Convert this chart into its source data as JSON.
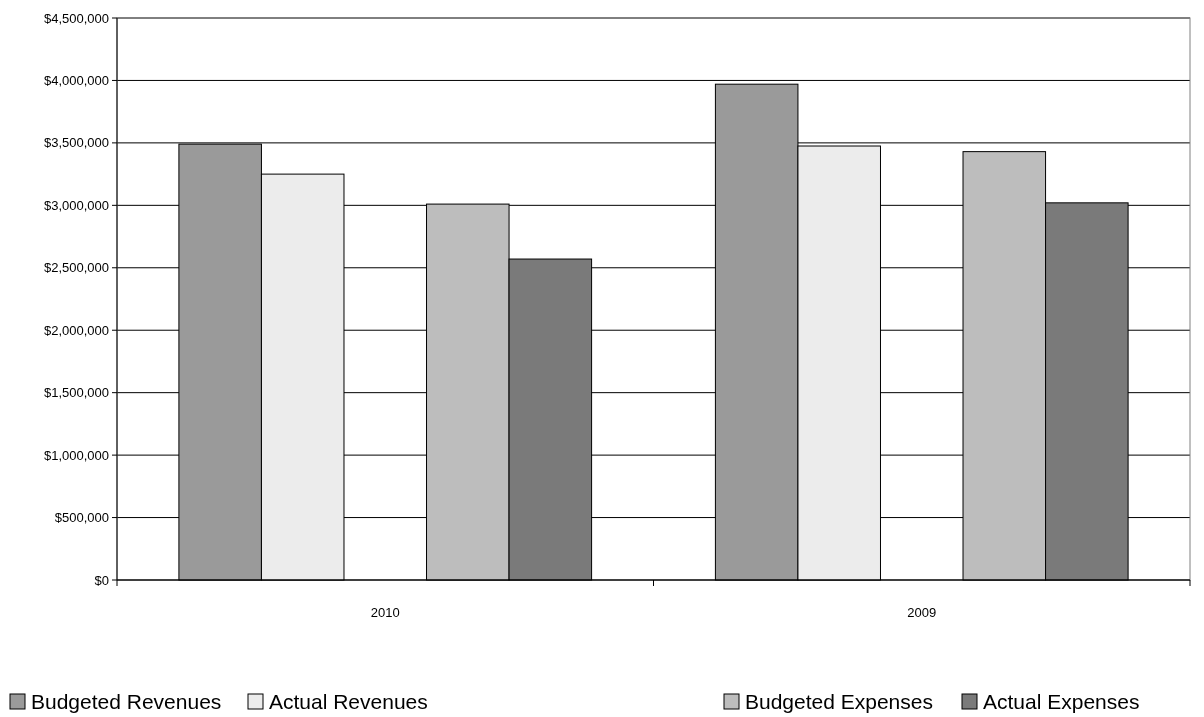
{
  "chart_data": {
    "type": "bar",
    "categories": [
      "2010",
      "2009"
    ],
    "series": [
      {
        "name": "Budgeted Revenues",
        "color": "#9a9a9a",
        "values": [
          3490000,
          3970000
        ]
      },
      {
        "name": "Actual Revenues",
        "color": "#ececec",
        "values": [
          3250000,
          3475000
        ]
      },
      {
        "values": [
          null,
          null
        ]
      },
      {
        "name": "Budgeted Expenses",
        "color": "#bdbdbd",
        "values": [
          3010000,
          3430000
        ]
      },
      {
        "name": "Actual Expenses",
        "color": "#7a7a7a",
        "values": [
          2570000,
          3020000
        ]
      }
    ],
    "ylim": [
      0,
      4500000
    ],
    "yticks": [
      {
        "value": 0,
        "label": "$0"
      },
      {
        "value": 500000,
        "label": "$500,000"
      },
      {
        "value": 1000000,
        "label": "$1,000,000"
      },
      {
        "value": 1500000,
        "label": "$1,500,000"
      },
      {
        "value": 2000000,
        "label": "$2,000,000"
      },
      {
        "value": 2500000,
        "label": "$2,500,000"
      },
      {
        "value": 3000000,
        "label": "$3,000,000"
      },
      {
        "value": 3500000,
        "label": "$3,500,000"
      },
      {
        "value": 4000000,
        "label": "$4,000,000"
      },
      {
        "value": 4500000,
        "label": "$4,500,000"
      }
    ],
    "grid": "y",
    "legend": "bottom"
  }
}
